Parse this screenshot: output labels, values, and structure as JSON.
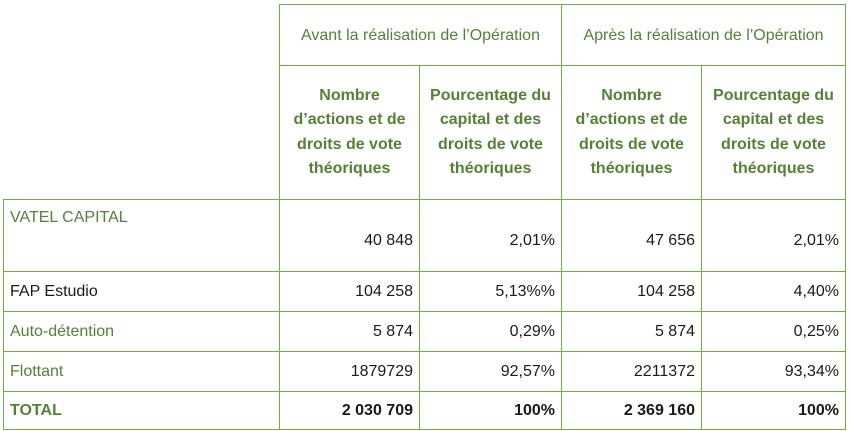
{
  "headers": {
    "before": "Avant la réalisation de l’Opération",
    "after": "Après la réalisation de l’Opération",
    "shares": "Nombre d’actions et de droits de vote théoriques",
    "percent": "Pourcentage du capital et des droits de vote théoriques"
  },
  "rows": [
    {
      "label": "VATEL CAPITAL",
      "before_shares": "40 848",
      "before_pct": "2,01%",
      "after_shares": "47 656",
      "after_pct": "2,01%"
    },
    {
      "label": "FAP Estudio",
      "before_shares": "104 258",
      "before_pct": "5,13%%",
      "after_shares": "104 258",
      "after_pct": "4,40%"
    },
    {
      "label": "Auto-détention",
      "before_shares": "5 874",
      "before_pct": "0,29%",
      "after_shares": "5 874",
      "after_pct": "0,25%"
    },
    {
      "label": "Flottant",
      "before_shares": "1879729",
      "before_pct": "92,57%",
      "after_shares": "2211372",
      "after_pct": "93,34%"
    },
    {
      "label": "TOTAL",
      "before_shares": "2 030 709",
      "before_pct": "100%",
      "after_shares": "2 369 160",
      "after_pct": "100%"
    }
  ],
  "colors": {
    "accent_green": "#548235",
    "border_green": "#70ad47",
    "text": "#1a1a1a"
  }
}
